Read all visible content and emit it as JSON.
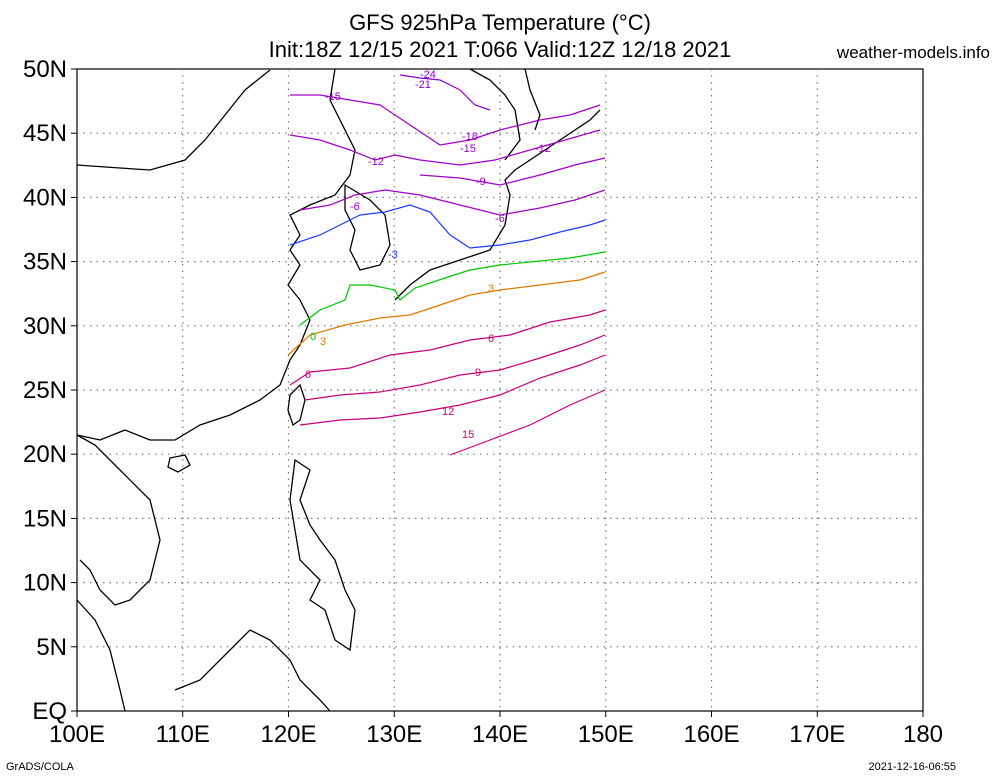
{
  "header": {
    "title_line1": "GFS 925hPa Temperature (°C)",
    "title_line2": "Init:18Z 12/15 2021 T:066 Valid:12Z 12/18 2021",
    "site": "weather-models.info"
  },
  "footer": {
    "left": "GrADS/COLA",
    "right": "2021-12-16-06:55"
  },
  "map": {
    "lon_ticks": [
      "100E",
      "110E",
      "120E",
      "130E",
      "140E",
      "150E",
      "160E",
      "170E",
      "180"
    ],
    "lat_ticks": [
      "50N",
      "45N",
      "40N",
      "35N",
      "30N",
      "25N",
      "20N",
      "15N",
      "10N",
      "5N",
      "EQ"
    ],
    "lon_range": [
      100,
      180
    ],
    "lat_range": [
      0,
      50
    ],
    "contour_labels": [
      "-24",
      "-21",
      "-18",
      "-15",
      "-12",
      "-9",
      "-6",
      "-3",
      "0",
      "3",
      "6",
      "9",
      "12",
      "15"
    ]
  },
  "colors": {
    "c_m24": "#8c00d6",
    "c_m15": "#a000c8",
    "c_m12": "#a000c8",
    "c_m9": "#a000c8",
    "c_m6": "#a000c8",
    "c_m3": "#1e3cff",
    "c_0": "#00c800",
    "c_3": "#e07800",
    "c_6": "#c8007a",
    "c_9": "#c8007a",
    "c_12": "#c8007a",
    "c_15": "#c8007a"
  }
}
